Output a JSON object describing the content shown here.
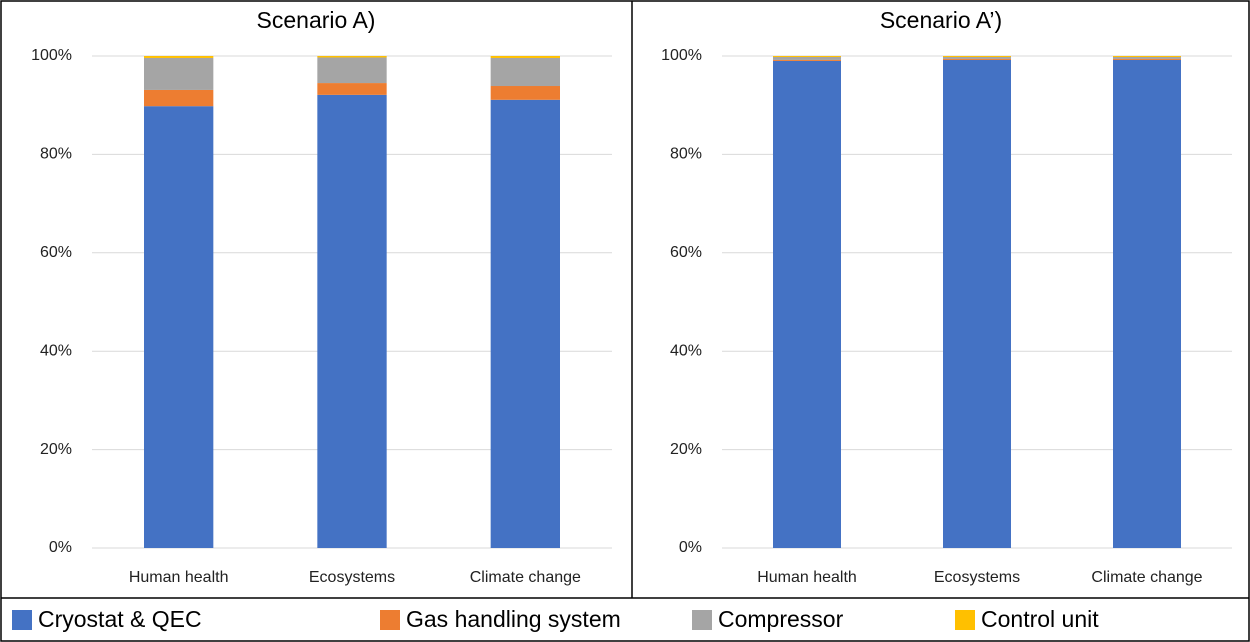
{
  "chart_data": [
    {
      "type": "stacked_bar",
      "title": "Scenario A)",
      "categories": [
        "Human health",
        "Ecosystems",
        "Climate change"
      ],
      "series": [
        {
          "name": "Cryostat & QEC",
          "color": "#4472c4",
          "values": [
            89.8,
            92.1,
            91.1
          ]
        },
        {
          "name": "Gas handling system",
          "color": "#ed7d31",
          "values": [
            3.3,
            2.4,
            2.8
          ]
        },
        {
          "name": "Compressor",
          "color": "#a5a5a5",
          "values": [
            6.5,
            5.2,
            5.7
          ]
        },
        {
          "name": "Control unit",
          "color": "#ffc000",
          "values": [
            0.4,
            0.3,
            0.4
          ]
        }
      ],
      "ylim": [
        0,
        100
      ],
      "yticks": [
        {
          "value": 0,
          "label": "0%"
        },
        {
          "value": 20,
          "label": "20%"
        },
        {
          "value": 40,
          "label": "40%"
        },
        {
          "value": 60,
          "label": "60%"
        },
        {
          "value": 80,
          "label": "80%"
        },
        {
          "value": 100,
          "label": "100%"
        }
      ],
      "grid": true
    },
    {
      "type": "stacked_bar",
      "title": "Scenario A’)",
      "categories": [
        "Human health",
        "Ecosystems",
        "Climate change"
      ],
      "series": [
        {
          "name": "Cryostat & QEC",
          "color": "#4472c4",
          "values": [
            99.0,
            99.2,
            99.2
          ]
        },
        {
          "name": "Gas handling system",
          "color": "#ed7d31",
          "values": [
            0.2,
            0.2,
            0.2
          ]
        },
        {
          "name": "Compressor",
          "color": "#a5a5a5",
          "values": [
            0.6,
            0.4,
            0.4
          ]
        },
        {
          "name": "Control unit",
          "color": "#ffc000",
          "values": [
            0.2,
            0.2,
            0.2
          ]
        }
      ],
      "ylim": [
        0,
        100
      ],
      "yticks": [
        {
          "value": 0,
          "label": "0%"
        },
        {
          "value": 20,
          "label": "20%"
        },
        {
          "value": 40,
          "label": "40%"
        },
        {
          "value": 60,
          "label": "60%"
        },
        {
          "value": 80,
          "label": "80%"
        },
        {
          "value": 100,
          "label": "100%"
        }
      ],
      "grid": true
    }
  ]
}
